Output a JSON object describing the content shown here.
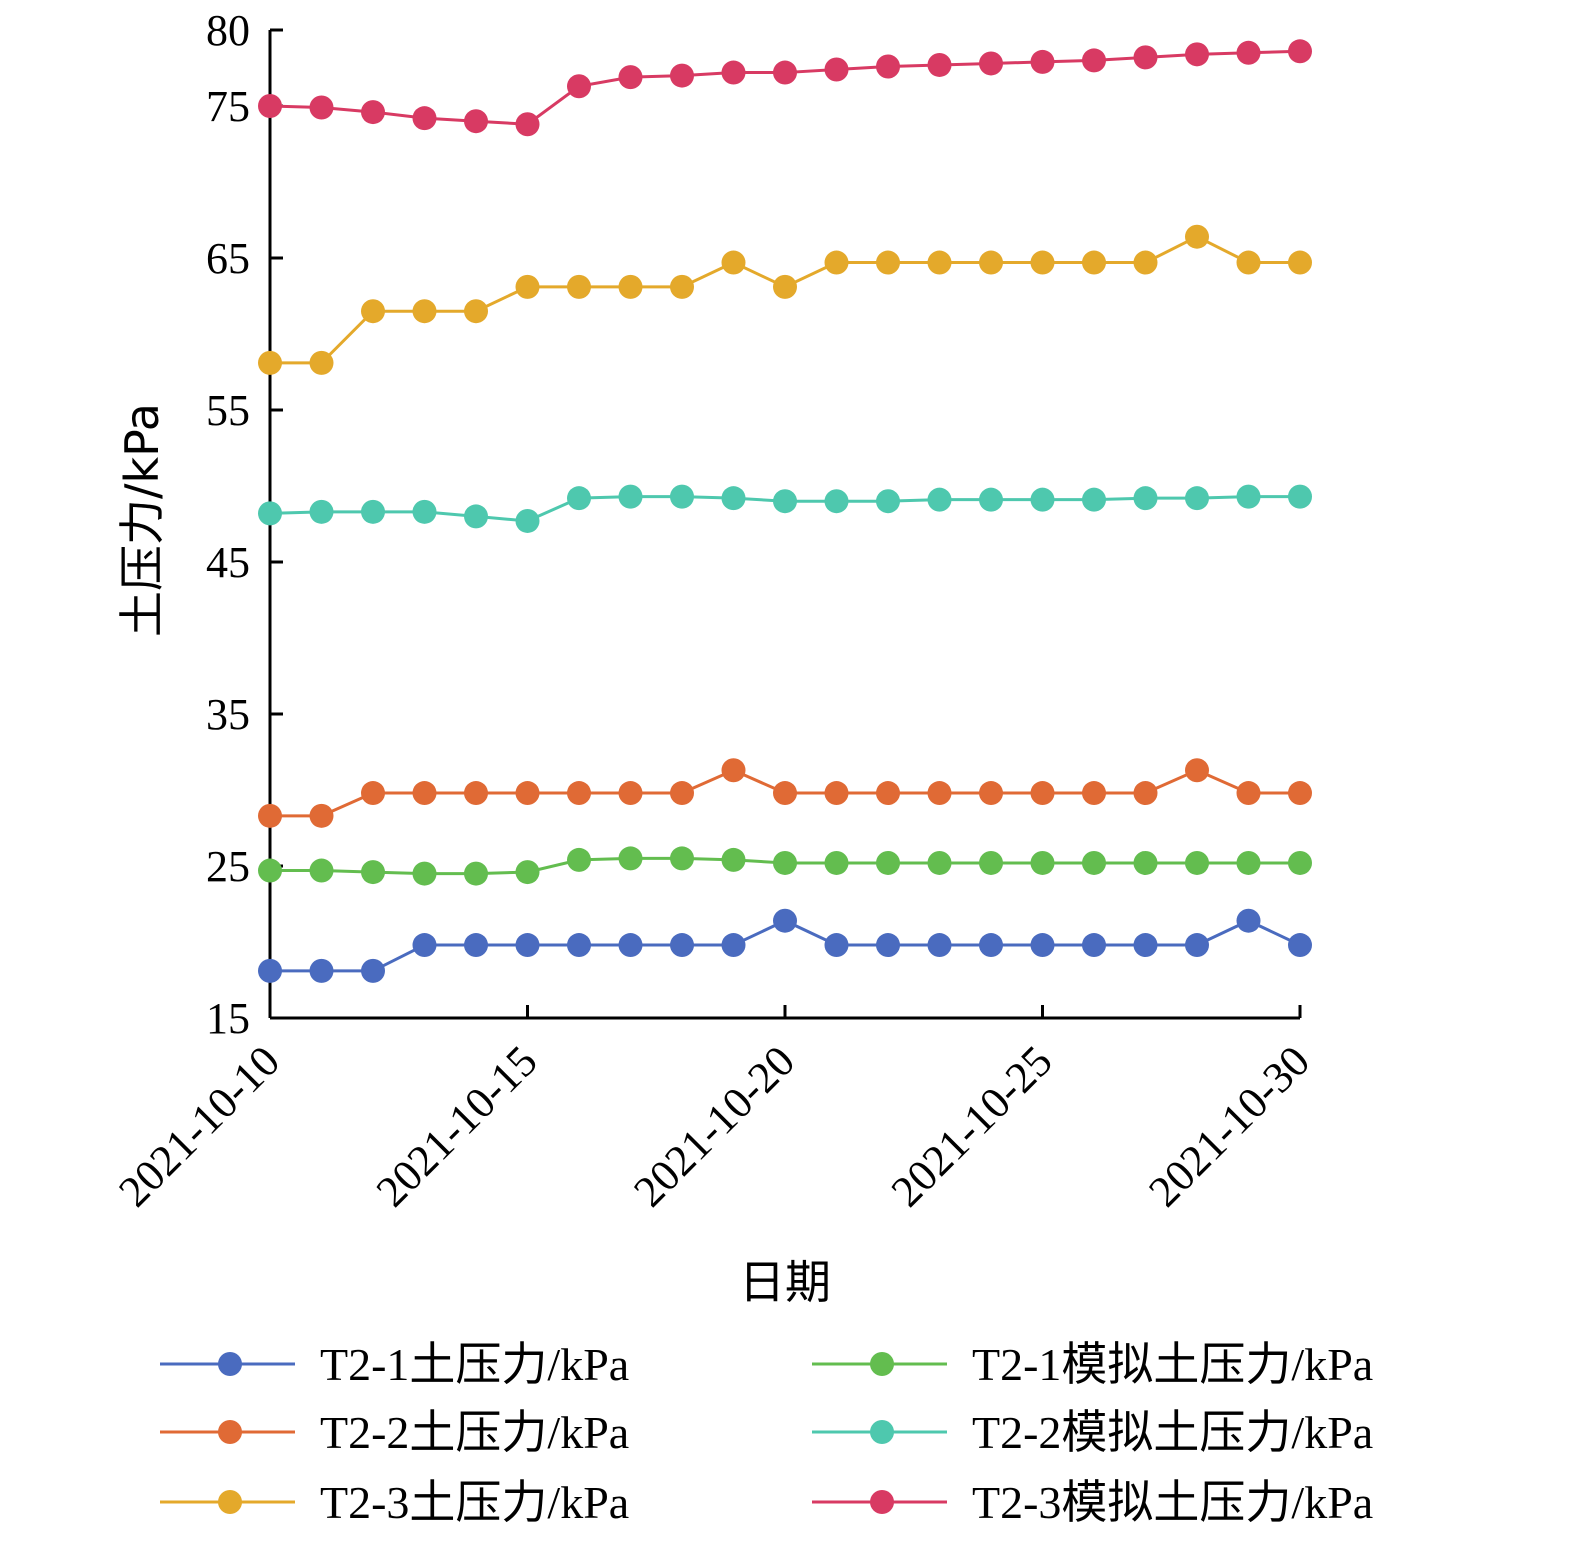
{
  "chart_data": {
    "type": "line",
    "xlabel": "日期",
    "ylabel": "土压力/kPa",
    "ylim": [
      15,
      80
    ],
    "yticks": [
      15,
      25,
      35,
      45,
      55,
      65,
      75,
      80
    ],
    "xlim": [
      "2021-10-10",
      "2021-10-30"
    ],
    "xticks": [
      "2021-10-10",
      "2021-10-15",
      "2021-10-20",
      "2021-10-25",
      "2021-10-30"
    ],
    "x": [
      "2021-10-10",
      "2021-10-11",
      "2021-10-12",
      "2021-10-13",
      "2021-10-14",
      "2021-10-15",
      "2021-10-16",
      "2021-10-17",
      "2021-10-18",
      "2021-10-19",
      "2021-10-20",
      "2021-10-21",
      "2021-10-22",
      "2021-10-23",
      "2021-10-24",
      "2021-10-25",
      "2021-10-26",
      "2021-10-27",
      "2021-10-28",
      "2021-10-29",
      "2021-10-30"
    ],
    "grid": false,
    "legend_position": "bottom",
    "series": [
      {
        "name": "T2-1土压力/kPa",
        "color": "#4a6bbf",
        "values": [
          18.1,
          18.1,
          18.1,
          19.8,
          19.8,
          19.8,
          19.8,
          19.8,
          19.8,
          19.8,
          21.4,
          19.8,
          19.8,
          19.8,
          19.8,
          19.8,
          19.8,
          19.8,
          19.8,
          21.4,
          19.8
        ]
      },
      {
        "name": "T2-2土压力/kPa",
        "color": "#e06a35",
        "values": [
          28.3,
          28.3,
          29.8,
          29.8,
          29.8,
          29.8,
          29.8,
          29.8,
          29.8,
          31.3,
          29.8,
          29.8,
          29.8,
          29.8,
          29.8,
          29.8,
          29.8,
          29.8,
          31.3,
          29.8,
          29.8
        ]
      },
      {
        "name": "T2-3土压力/kPa",
        "color": "#e4a92b",
        "values": [
          58.1,
          58.1,
          61.5,
          61.5,
          61.5,
          63.1,
          63.1,
          63.1,
          63.1,
          64.7,
          63.1,
          64.7,
          64.7,
          64.7,
          64.7,
          64.7,
          64.7,
          64.7,
          66.4,
          64.7,
          64.7
        ]
      },
      {
        "name": "T2-1模拟土压力/kPa",
        "color": "#63bd4f",
        "values": [
          24.7,
          24.7,
          24.6,
          24.5,
          24.5,
          24.6,
          25.4,
          25.5,
          25.5,
          25.4,
          25.2,
          25.2,
          25.2,
          25.2,
          25.2,
          25.2,
          25.2,
          25.2,
          25.2,
          25.2,
          25.2
        ]
      },
      {
        "name": "T2-2模拟土压力/kPa",
        "color": "#4ec8ae",
        "values": [
          48.2,
          48.3,
          48.3,
          48.3,
          48.0,
          47.7,
          49.2,
          49.3,
          49.3,
          49.2,
          49.0,
          49.0,
          49.0,
          49.1,
          49.1,
          49.1,
          49.1,
          49.2,
          49.2,
          49.3,
          49.3
        ]
      },
      {
        "name": "T2-3模拟土压力/kPa",
        "color": "#d83a63",
        "values": [
          75.0,
          74.9,
          74.6,
          74.2,
          74.0,
          73.8,
          76.3,
          76.9,
          77.0,
          77.2,
          77.2,
          77.4,
          77.6,
          77.7,
          77.8,
          77.9,
          78.0,
          78.2,
          78.4,
          78.5,
          78.6
        ]
      }
    ]
  }
}
